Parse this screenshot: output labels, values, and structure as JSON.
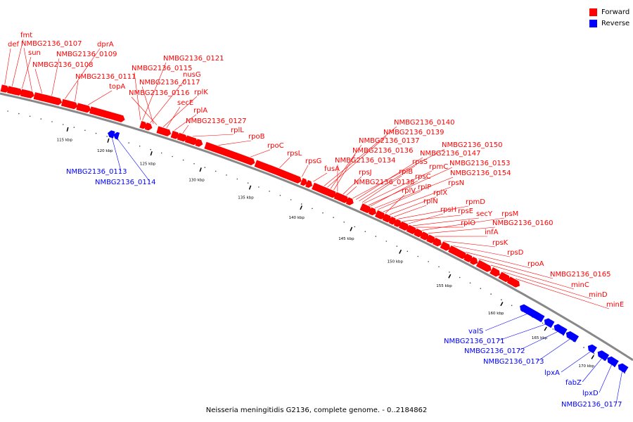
{
  "legend": {
    "items": [
      {
        "label": "Forward",
        "color": "#ff0000"
      },
      {
        "label": "Reverse",
        "color": "#0000ff"
      }
    ]
  },
  "caption": "Neisseria meningitidis G2136, complete genome. - 0..2184862",
  "colors": {
    "forward": "#ff0000",
    "reverse": "#0000ff",
    "backbone": "#888888",
    "tick": "#000000"
  },
  "ticks": [
    "115 kbp",
    "120 kbp",
    "125 kbp",
    "130 kbp",
    "135 kbp",
    "140 kbp",
    "145 kbp",
    "150 kbp",
    "155 kbp",
    "160 kbp",
    "165 kbp",
    "170 kbp"
  ],
  "forward_genes": [
    "def",
    "fmt",
    "sun",
    "NMBG2136_0107",
    "NMBG2136_0108",
    "NMBG2136_0109",
    "dprA",
    "NMBG2136_0111",
    "topA",
    "NMBG2136_0121",
    "NMBG2136_0115",
    "nusG",
    "NMBG2136_0117",
    "rplK",
    "NMBG2136_0116",
    "secE",
    "rplA",
    "NMBG2136_0127",
    "rplL",
    "rpoB",
    "rpoC",
    "rpsL",
    "rpsG",
    "fusA",
    "NMBG2136_0140",
    "NMBG2136_0139",
    "NMBG2136_0137",
    "NMBG2136_0136",
    "NMBG2136_0134",
    "rpsJ",
    "NMBG2136_0138",
    "NMBG2136_0150",
    "NMBG2136_0147",
    "rpsS",
    "rplB",
    "rpmC",
    "NMBG2136_0153",
    "rpsC",
    "NMBG2136_0154",
    "rplP",
    "rpsN",
    "rplV",
    "rplX",
    "rplN",
    "rpmD",
    "rpsE",
    "rpsH",
    "secY",
    "rplO",
    "rpsM",
    "NMBG2136_0160",
    "infA",
    "rpsK",
    "rpsD",
    "rpoA",
    "NMBG2136_0165",
    "minC",
    "minD",
    "minE"
  ],
  "reverse_genes": [
    "NMBG2136_0113",
    "NMBG2136_0114",
    "valS",
    "NMBG2136_0171",
    "NMBG2136_0172",
    "NMBG2136_0173",
    "lpxA",
    "fabZ",
    "lpxD",
    "NMBG2136_0177"
  ]
}
